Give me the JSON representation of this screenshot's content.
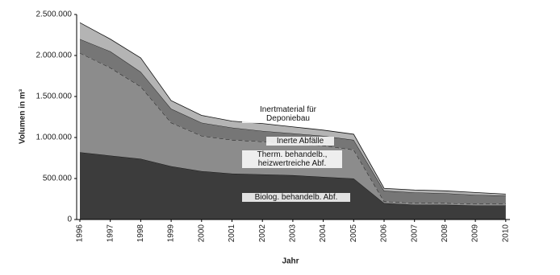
{
  "chart_data": {
    "type": "stacked_area",
    "x_label": "Jahr",
    "y_label": "Volumen in m³",
    "categories": [
      "1996",
      "1997",
      "1998",
      "1999",
      "2000",
      "2001",
      "2002",
      "2003",
      "2004",
      "2005",
      "2006",
      "2007",
      "2008",
      "2009",
      "2010"
    ],
    "series": [
      {
        "name": "Biolog. behandelb. Abf.",
        "color": "#3c3c3c",
        "values": [
          820000,
          780000,
          740000,
          650000,
          590000,
          560000,
          550000,
          540000,
          520000,
          500000,
          200000,
          180000,
          180000,
          170000,
          170000
        ]
      },
      {
        "name": "Therm. behandelb., heizwertreiche Abf.",
        "color": "#8c8c8c",
        "values": [
          1210000,
          1070000,
          880000,
          530000,
          430000,
          410000,
          400000,
          390000,
          380000,
          350000,
          20000,
          20000,
          20000,
          20000,
          20000
        ]
      },
      {
        "name": "Inerte Abfälle",
        "color": "#767676",
        "values": [
          170000,
          200000,
          180000,
          170000,
          160000,
          150000,
          130000,
          120000,
          120000,
          120000,
          130000,
          130000,
          120000,
          110000,
          100000
        ]
      },
      {
        "name": "Inertmaterial für Deponiebau",
        "color": "#b4b4b4",
        "values": [
          200000,
          150000,
          170000,
          100000,
          90000,
          80000,
          90000,
          80000,
          70000,
          70000,
          30000,
          30000,
          30000,
          30000,
          20000
        ]
      }
    ],
    "ylim": [
      0,
      2500000
    ],
    "yticks": [
      0,
      {
        "value": 500000,
        "label": "500.000"
      },
      {
        "value": 1000000,
        "label": "1.000.000"
      },
      {
        "value": 1500000,
        "label": "1.500.000"
      },
      {
        "value": 2000000,
        "label": "2.000.000"
      },
      {
        "value": 2500000,
        "label": "2.500.000"
      }
    ]
  }
}
